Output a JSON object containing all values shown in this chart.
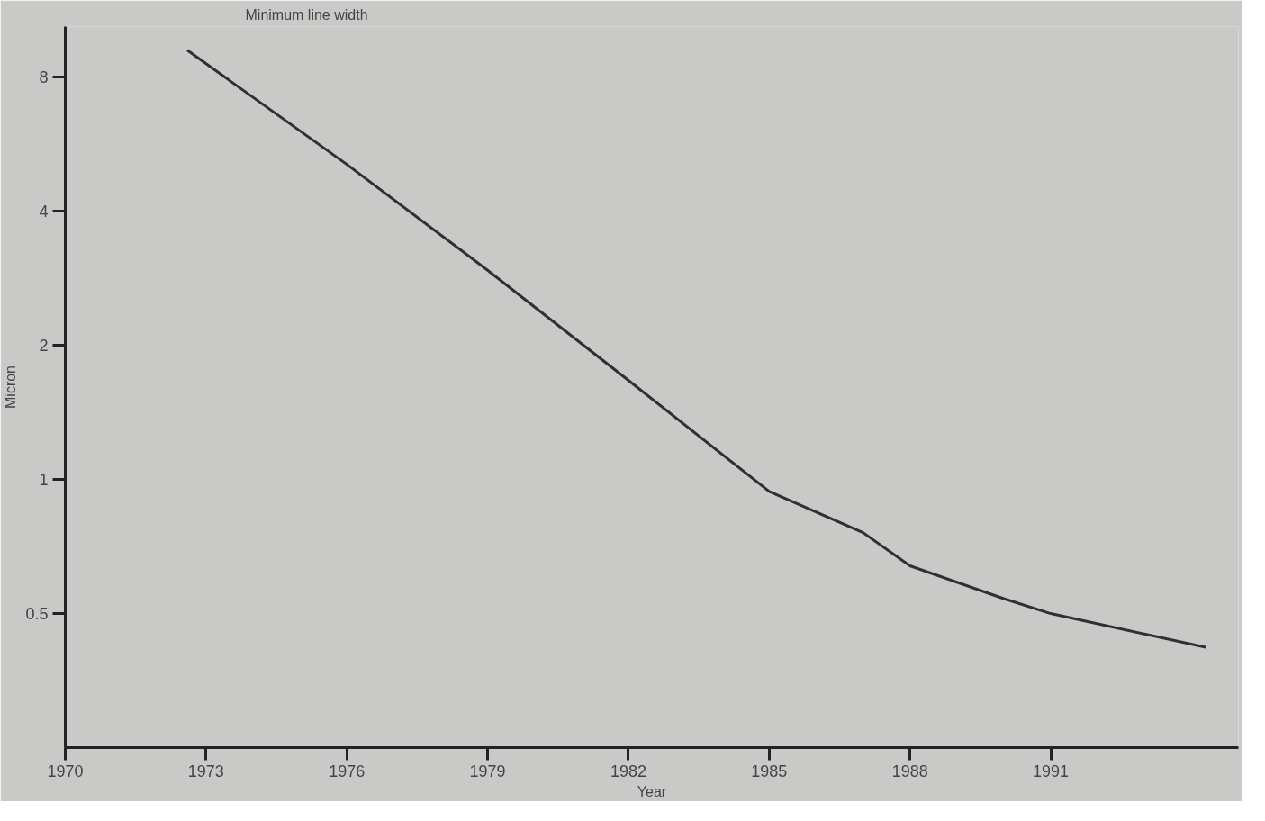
{
  "chart_data": {
    "type": "line",
    "title": "Minimum line width",
    "xlabel": "Year",
    "ylabel": "Micron",
    "x": [
      1972.6,
      1976,
      1979,
      1982,
      1985,
      1987,
      1988,
      1990,
      1991,
      1994.3
    ],
    "series": [
      {
        "color": "#303030",
        "values": [
          9.2,
          5.1,
          2.95,
          1.67,
          0.94,
          0.76,
          0.64,
          0.54,
          0.5,
          0.42
        ]
      }
    ],
    "log": "y",
    "xlim": [
      1970,
      1995
    ],
    "ylim": [
      0.25,
      10.4
    ],
    "xticks": [
      1970,
      1973,
      1976,
      1979,
      1982,
      1985,
      1988,
      1991
    ],
    "yticks": [
      0.5,
      1,
      2,
      4,
      8
    ],
    "grid": false,
    "marker": "none",
    "line_style": "solid"
  }
}
